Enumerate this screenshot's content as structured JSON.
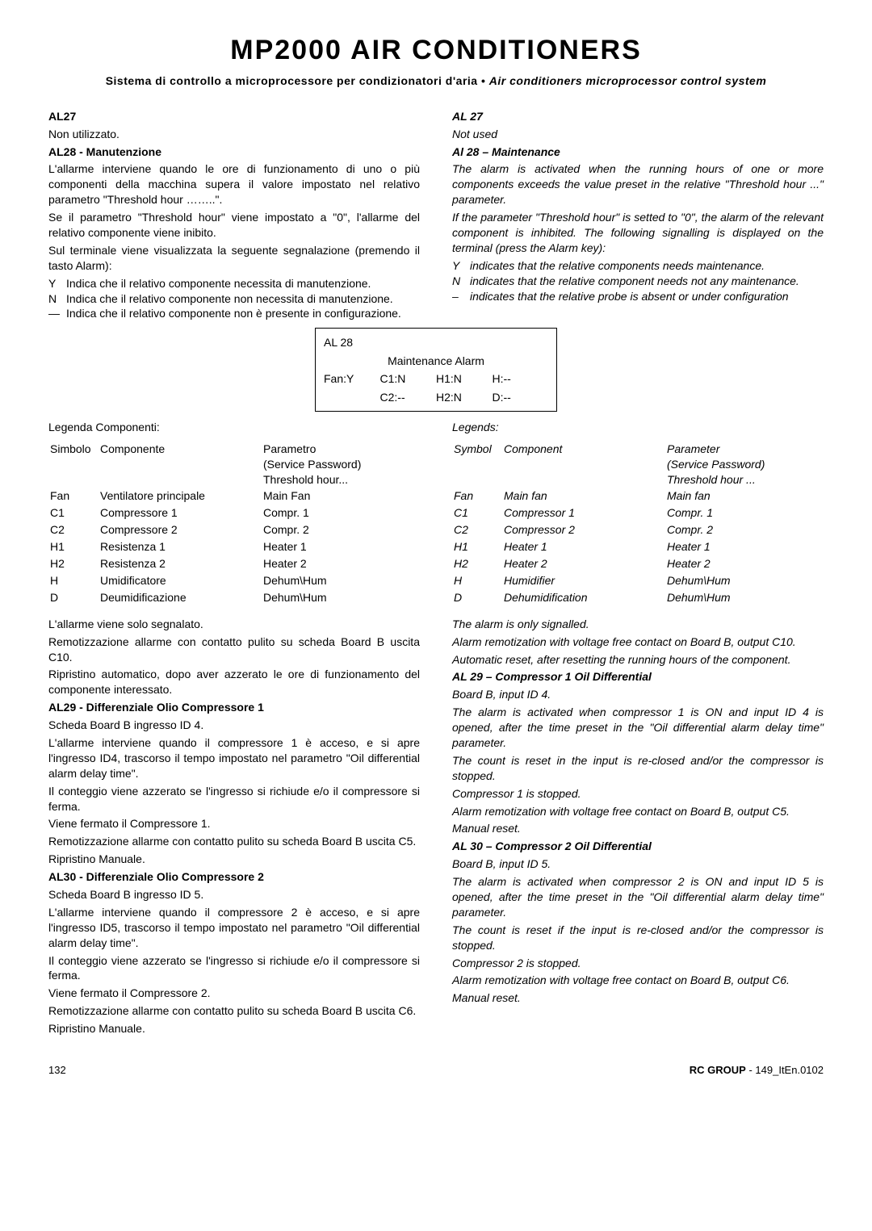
{
  "header": {
    "title": "MP2000 AIR CONDITIONERS",
    "subtitle_it": "Sistema di controllo a microprocessore per condizionatori d'aria",
    "bullet": "•",
    "subtitle_en": "Air conditioners microprocessor control system"
  },
  "it": {
    "al27_head": "AL27",
    "al27_body": "Non utilizzato.",
    "al28_head": "AL28 - Manutenzione",
    "al28_p1": "L'allarme interviene quando le ore di funzionamento di uno o più componenti della macchina supera il valore impostato nel relativo parametro \"Threshold hour ……..\".",
    "al28_p2": "Se il parametro \"Threshold hour\" viene impostato a \"0\", l'allarme del relativo componente viene inibito.",
    "al28_p3": "Sul terminale viene visualizzata la seguente segnalazione (premendo il tasto Alarm):",
    "al28_li1": "Indica che il relativo componente necessita di manutenzione.",
    "al28_li2": "Indica che il relativo componente non necessita di manutenzione.",
    "al28_li3": "Indica che il relativo componente non è presente in configurazione.",
    "legend_head": "Legenda Componenti:",
    "th1": "Simbolo",
    "th2": "Componente",
    "th3a": "Parametro",
    "th3b": "(Service Password)",
    "th3c": "Threshold hour...",
    "rows": [
      [
        "Fan",
        "Ventilatore principale",
        "Main Fan"
      ],
      [
        "C1",
        "Compressore 1",
        "Compr. 1"
      ],
      [
        "C2",
        "Compressore 2",
        "Compr. 2"
      ],
      [
        "H1",
        "Resistenza 1",
        "Heater 1"
      ],
      [
        "H2",
        "Resistenza 2",
        "Heater 2"
      ],
      [
        "H",
        "Umidificatore",
        "Dehum\\Hum"
      ],
      [
        "D",
        "Deumidificazione",
        "Dehum\\Hum"
      ]
    ],
    "al28_after1": "L'allarme viene solo segnalato.",
    "al28_after2": "Remotizzazione allarme con contatto pulito su scheda Board B uscita C10.",
    "al28_after3": "Ripristino automatico, dopo aver azzerato le ore di funzionamento del componente interessato.",
    "al29_head": "AL29 - Differenziale Olio Compressore 1",
    "al29_p1": "Scheda Board B ingresso ID 4.",
    "al29_p2": "L'allarme interviene quando il compressore 1 è acceso, e si apre l'ingresso ID4, trascorso il tempo impostato nel parametro \"Oil differential alarm delay time\".",
    "al29_p3": "Il conteggio viene azzerato se l'ingresso si richiude e/o il compressore si ferma.",
    "al29_p4": "Viene fermato il Compressore 1.",
    "al29_p5": "Remotizzazione allarme con contatto pulito su scheda Board B uscita C5.",
    "al29_p6": "Ripristino Manuale.",
    "al30_head": "AL30 - Differenziale Olio Compressore 2",
    "al30_p1": "Scheda Board B ingresso ID 5.",
    "al30_p2": "L'allarme interviene quando il compressore 2 è acceso, e si apre l'ingresso ID5, trascorso il tempo impostato nel parametro \"Oil differential alarm delay time\".",
    "al30_p3": "Il conteggio viene azzerato se l'ingresso si richiude e/o il compressore si ferma.",
    "al30_p4": "Viene fermato il Compressore 2.",
    "al30_p5": "Remotizzazione allarme con contatto pulito su scheda Board B uscita C6.",
    "al30_p6": "Ripristino Manuale."
  },
  "en": {
    "al27_head": "AL 27",
    "al27_body": "Not used",
    "al28_head": "Al 28 – Maintenance",
    "al28_p1": "The alarm is activated when the running hours of one or more components exceeds the value preset in the relative \"Threshold hour ...\" parameter.",
    "al28_p2": "If the parameter \"Threshold hour\" is setted to \"0\", the alarm of the relevant component is inhibited. The following signalling is displayed on the terminal (press the Alarm key):",
    "al28_li1": "indicates that the relative components needs maintenance.",
    "al28_li2": "indicates that the relative component needs not any maintenance.",
    "al28_li3": "indicates that the relative probe is absent or under configuration",
    "legend_head": "Legends:",
    "th1": "Symbol",
    "th2": "Component",
    "th3a": "Parameter",
    "th3b": "(Service Password)",
    "th3c": "Threshold hour ...",
    "rows": [
      [
        "Fan",
        "Main fan",
        "Main fan"
      ],
      [
        "C1",
        "Compressor 1",
        "Compr. 1"
      ],
      [
        "C2",
        "Compressor 2",
        "Compr. 2"
      ],
      [
        "H1",
        "Heater 1",
        "Heater 1"
      ],
      [
        "H2",
        "Heater 2",
        "Heater 2"
      ],
      [
        "H",
        "Humidifier",
        "Dehum\\Hum"
      ],
      [
        "D",
        "Dehumidification",
        "Dehum\\Hum"
      ]
    ],
    "al28_after1": "The alarm is only signalled.",
    "al28_after2": "Alarm remotization with voltage free contact on Board B, output C10.",
    "al28_after3": "Automatic reset, after resetting the running hours of the component.",
    "al29_head": "AL 29 – Compressor 1 Oil Differential",
    "al29_p1": "Board B, input ID 4.",
    "al29_p2": "The alarm is activated when compressor 1 is ON and input ID 4 is opened, after the time preset in the \"Oil differential alarm delay time\" parameter.",
    "al29_p3": "The count is reset in the input is re-closed and/or the compressor is stopped.",
    "al29_p4": "Compressor 1 is stopped.",
    "al29_p5": "Alarm remotization with voltage free contact on Board B, output C5.",
    "al29_p6": "Manual reset.",
    "al30_head": "AL 30 – Compressor 2 Oil Differential",
    "al30_p1": "Board B, input ID 5.",
    "al30_p2": "The alarm is activated when compressor 2 is ON and input ID 5 is opened, after the time preset in the \"Oil differential alarm delay time\" parameter.",
    "al30_p3": "The count is reset if the input is re-closed and/or the compressor is stopped.",
    "al30_p4": "Compressor 2 is stopped.",
    "al30_p5": "Alarm remotization with voltage free contact on Board B, output C6.",
    "al30_p6": "Manual reset."
  },
  "alarmbox": {
    "l1": "AL 28",
    "l2": "Maintenance Alarm",
    "r1": [
      "Fan:Y",
      "C1:N",
      "H1:N",
      "H:--"
    ],
    "r2": [
      "",
      "C2:--",
      "H2:N",
      "D:--"
    ]
  },
  "footer": {
    "page": "132",
    "brand": "RC GROUP",
    "code": "- 149_ItEn.0102"
  }
}
